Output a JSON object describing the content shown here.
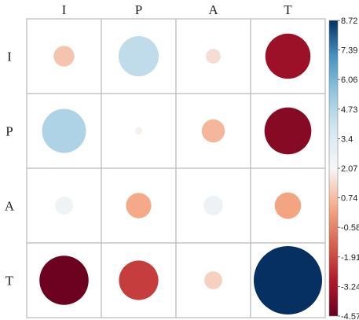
{
  "chart_data": {
    "type": "heatmap",
    "style": "correlation-circles",
    "row_labels": [
      "I",
      "P",
      "A",
      "T"
    ],
    "col_labels": [
      "I",
      "P",
      "A",
      "T"
    ],
    "values": [
      [
        -0.8,
        3.0,
        -0.4,
        -3.8
      ],
      [
        3.6,
        -0.1,
        -1.0,
        -4.1
      ],
      [
        0.6,
        -1.2,
        0.7,
        -1.3
      ],
      [
        -4.5,
        -2.9,
        -0.6,
        8.72
      ]
    ],
    "colorbar": {
      "min": -4.57,
      "max": 8.72,
      "ticks": [
        "8.72",
        "7.39",
        "6.06",
        "4.73",
        "3.4",
        "2.07",
        "0.74",
        "-0.58",
        "-1.91",
        "-3.24",
        "-4.57"
      ]
    },
    "colors": {
      "low": "#67001f",
      "mid": "#f7f7f7",
      "high": "#053061",
      "grid": "#bbbbbb"
    }
  }
}
